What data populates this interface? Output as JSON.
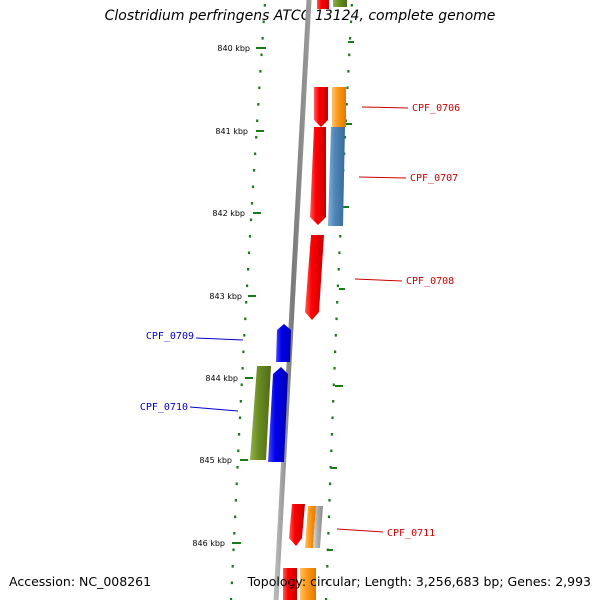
{
  "title": "Clostridium perfringens ATCC 13124, complete genome",
  "footer": {
    "accession": "Accession: NC_008261",
    "summary": "Topology: circular; Length: 3,256,683 bp; Genes: 2,993"
  },
  "colors": {
    "backbone": "#8c8c8c",
    "ticks": "#1a7a1a",
    "forward_label": "#cc0000",
    "reverse_label": "#0000cc",
    "cds_red": "#ee0000",
    "cds_orange": "#ff9a1a",
    "cds_steelblue": "#4f86b8",
    "cds_blue": "#0000ee",
    "cds_olive": "#6b8e23",
    "cds_grey": "#b0b0b0"
  },
  "ticks": [
    "840 kbp",
    "841 kbp",
    "842 kbp",
    "843 kbp",
    "844 kbp",
    "845 kbp",
    "846 kbp"
  ],
  "gene_labels": [
    {
      "name": "CPF_0706",
      "strand": "forward"
    },
    {
      "name": "CPF_0707",
      "strand": "forward"
    },
    {
      "name": "CPF_0708",
      "strand": "forward"
    },
    {
      "name": "CPF_0709",
      "strand": "reverse"
    },
    {
      "name": "CPF_0710",
      "strand": "reverse"
    },
    {
      "name": "CPF_0711",
      "strand": "forward"
    }
  ]
}
